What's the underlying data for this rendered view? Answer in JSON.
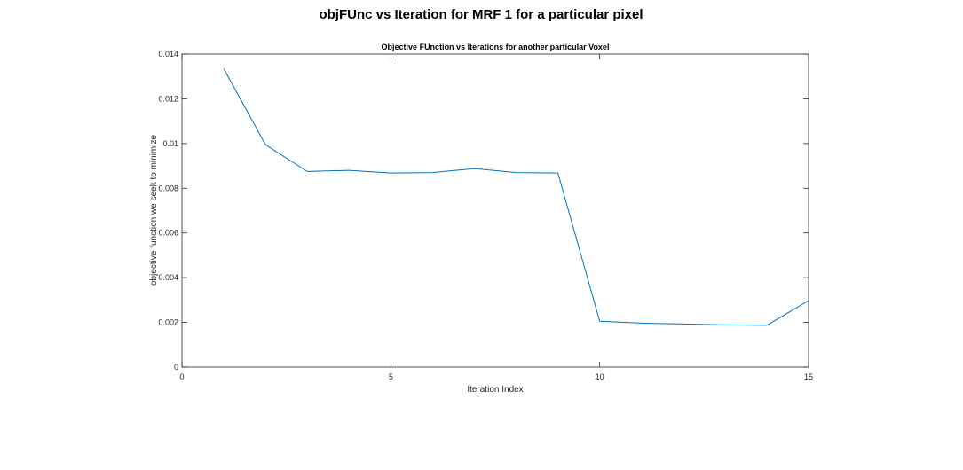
{
  "figure": {
    "suptitle": "objFUnc vs Iteration for MRF 1 for a particular pixel"
  },
  "chart_data": {
    "type": "line",
    "title": "Objective FUnction vs Iterations for another particular Voxel",
    "xlabel": "Iteration Index",
    "ylabel": "objective function we seek to minimize",
    "xlim": [
      0,
      15
    ],
    "ylim": [
      0,
      0.014
    ],
    "xticks": [
      0,
      5,
      10,
      15
    ],
    "xtick_labels": [
      "0",
      "5",
      "10",
      "15"
    ],
    "yticks": [
      0,
      0.002,
      0.004,
      0.006,
      0.008,
      0.01,
      0.012,
      0.014
    ],
    "ytick_labels": [
      "0",
      "0.002",
      "0.004",
      "0.006",
      "0.008",
      "0.01",
      "0.012",
      "0.014"
    ],
    "grid": false,
    "series": [
      {
        "color": "#0072bd",
        "x": [
          1,
          2,
          3,
          4,
          5,
          6,
          7,
          8,
          9,
          10,
          11,
          12,
          13,
          14,
          15
        ],
        "y": [
          0.01335,
          0.00995,
          0.00875,
          0.0088,
          0.00868,
          0.0087,
          0.00888,
          0.0087,
          0.00868,
          0.00205,
          0.00197,
          0.00193,
          0.00189,
          0.00187,
          0.00297
        ]
      }
    ]
  }
}
